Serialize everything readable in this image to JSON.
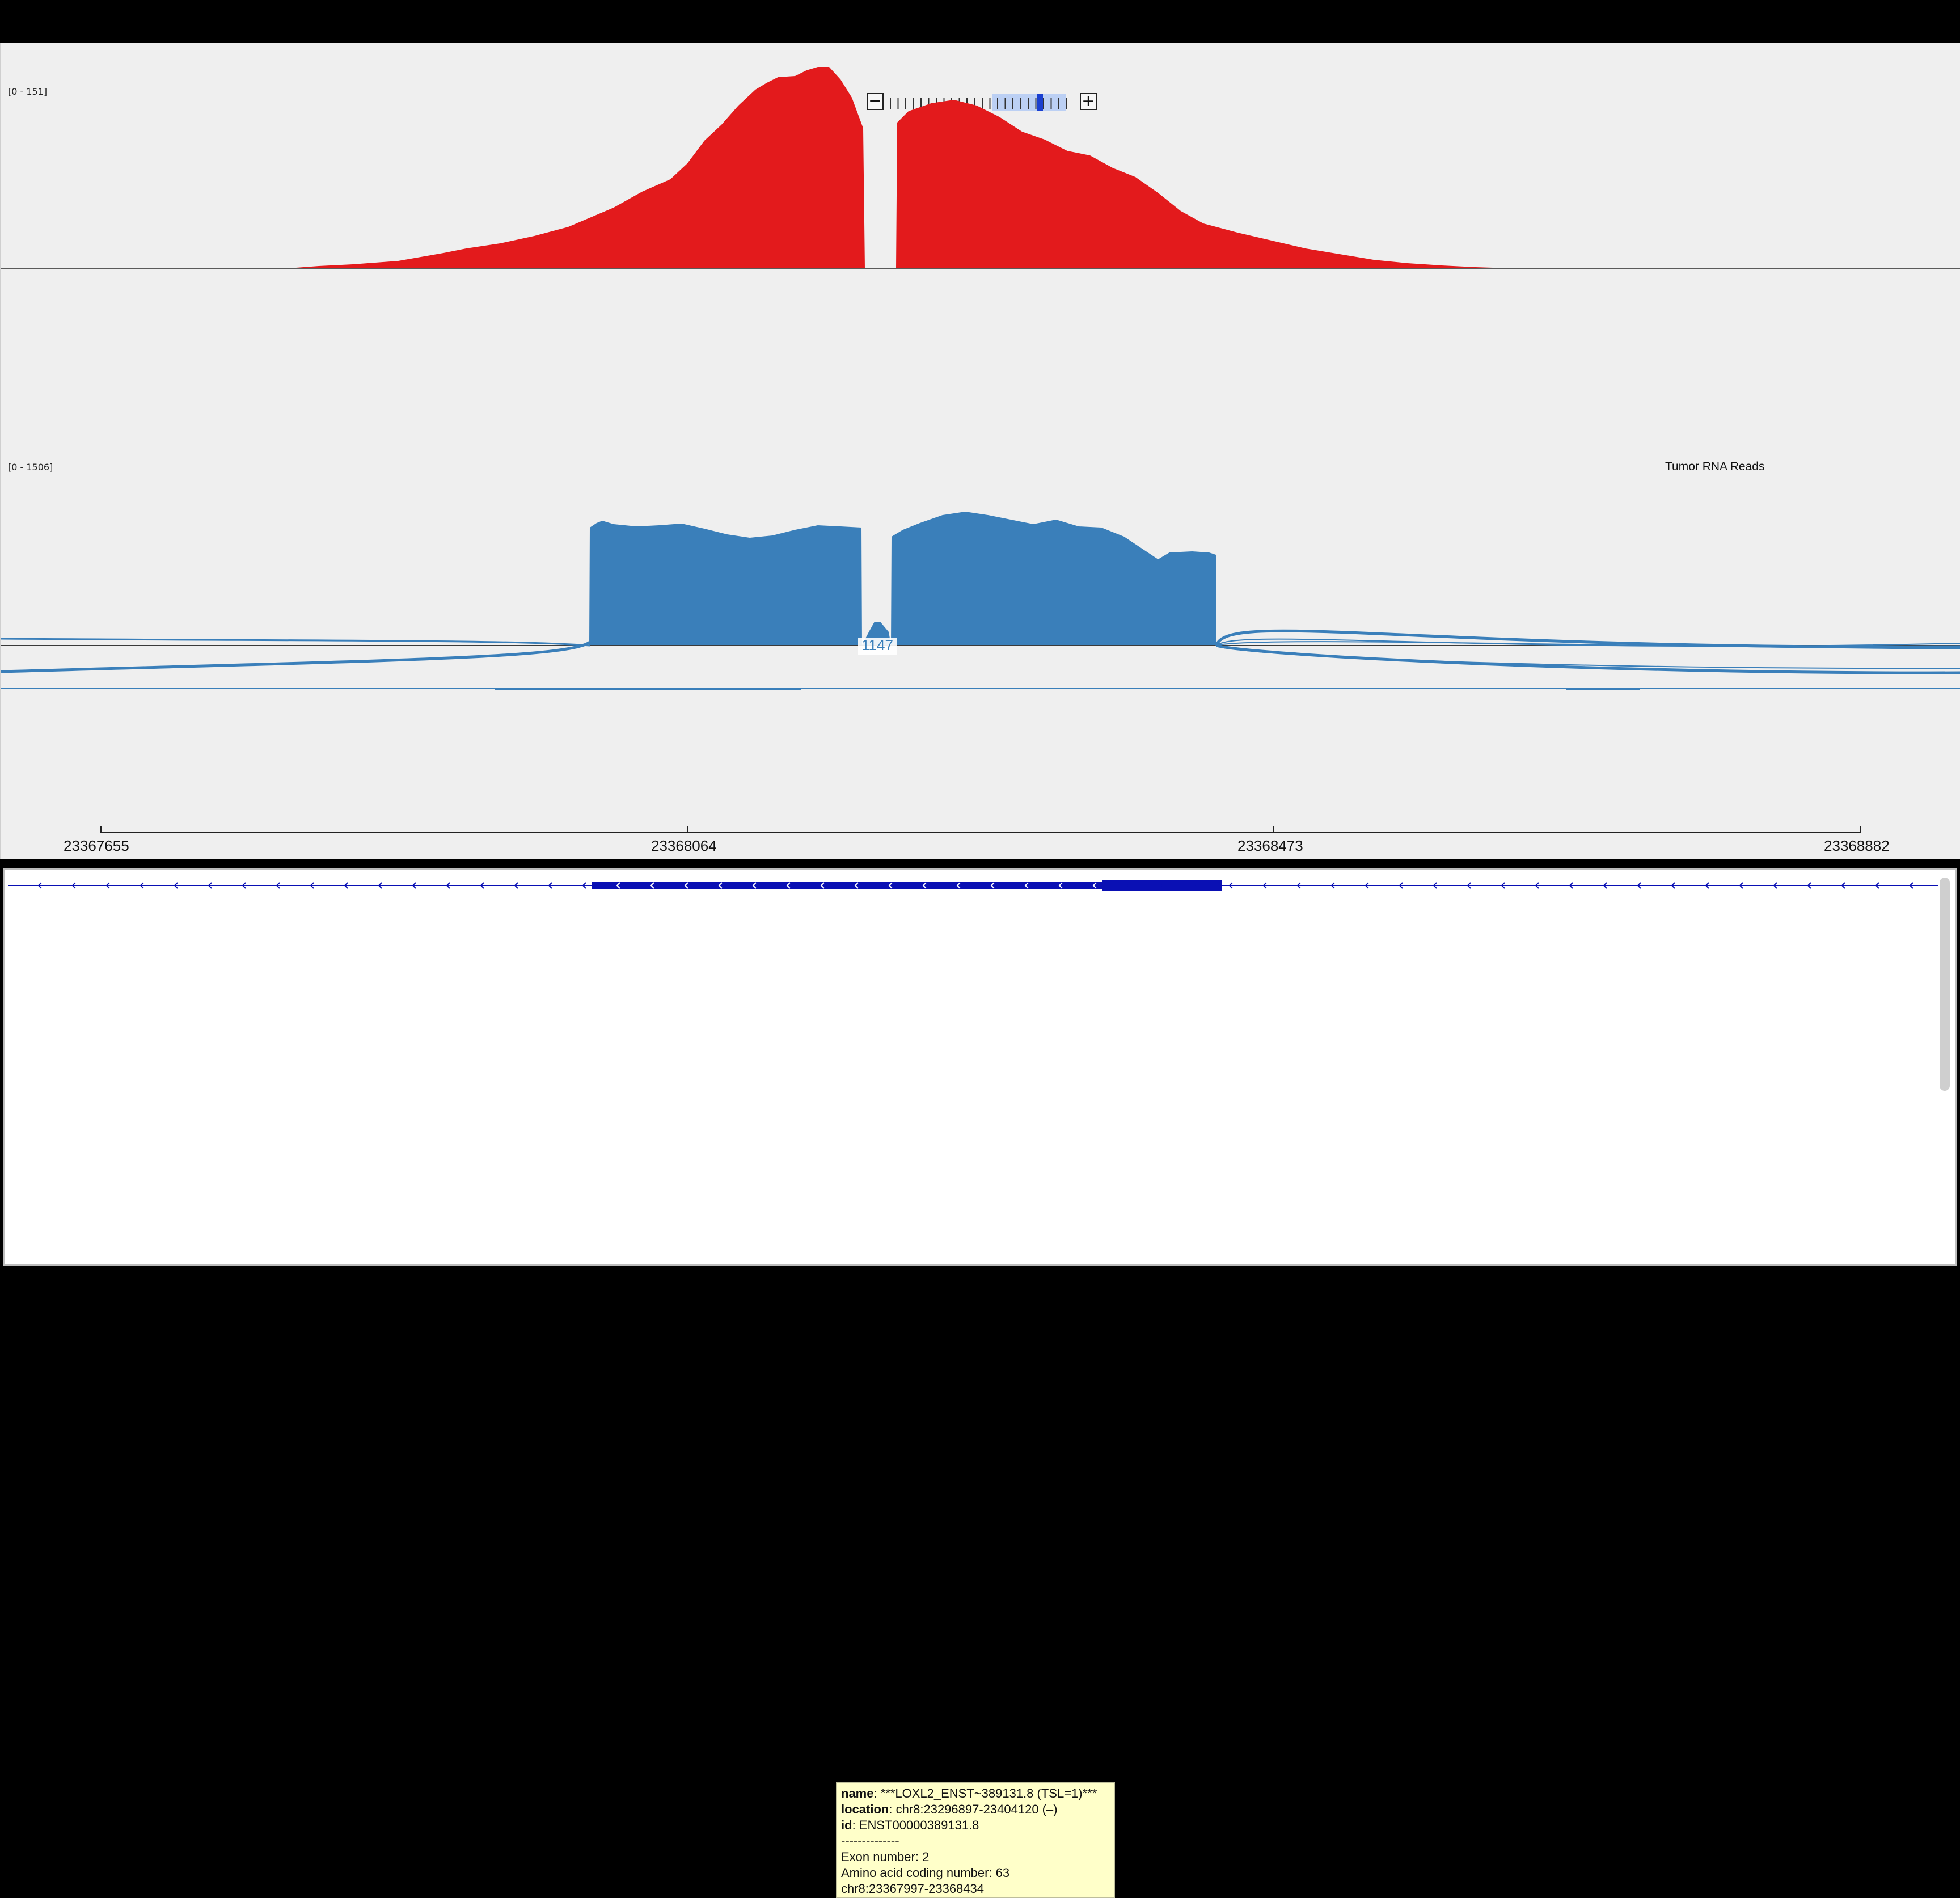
{
  "tracks": {
    "dna": {
      "range": "[0 - 151]",
      "color": "#e31a1c"
    },
    "rna": {
      "range": "[0 - 1506]",
      "name": "Tumor RNA Reads",
      "color": "#3a7fba",
      "junction_count": "1147"
    }
  },
  "ruler": {
    "ticks": [
      "23367655",
      "23368064",
      "23368473",
      "23368882"
    ]
  },
  "zoom": {
    "minus": "−",
    "plus": "+",
    "levels": 24,
    "current_level": 18
  },
  "gene_feature": {
    "color": "#0a10b4"
  },
  "tooltip": {
    "name_key": "name",
    "name_value": ": ***LOXL2_ENST~389131.8 (TSL=1)***",
    "location_key": "location",
    "location_value": ": chr8:23296897-23404120 (–)",
    "id_key": "id",
    "id_value": ": ENST00000389131.8",
    "separator": "--------------",
    "exon": "Exon number: 2",
    "aa": "Amino acid coding number: 63",
    "coords": "chr8:23367997-23368434"
  }
}
